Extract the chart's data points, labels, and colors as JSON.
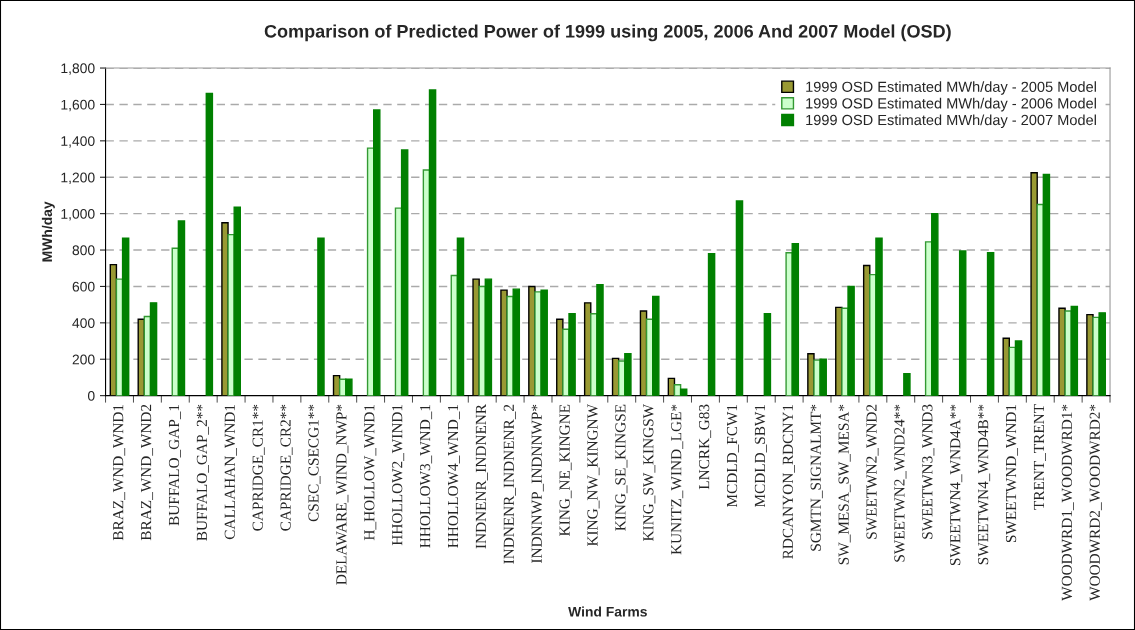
{
  "chart_data": {
    "type": "bar",
    "title": "Comparison of Predicted Power of 1999 using 2005, 2006 And 2007 Model (OSD)",
    "xlabel": "Wind Farms",
    "ylabel": "MWh/day",
    "categories": [
      "BRAZ_WND_WND1",
      "BRAZ_WND_WND2",
      "BUFFALO_GAP_1",
      "BUFFALO_GAP_2**",
      "CALLAHAN_WND1",
      "CAPRIDGE_CR1**",
      "CAPRIDGE_CR2**",
      "CSEC_CSECG1**",
      "DELAWARE_WIND_NWP*",
      "H_HOLLOW_WND1",
      "HHOLLOW2_WIND1",
      "HHOLLOW3_WND_1",
      "HHOLLOW4_WND_1",
      "INDNENR_INDNENR",
      "INDNENR_INDNENR_2",
      "INDNNWP_INDNNWP*",
      "KING_NE_KINGNE",
      "KING_NW_KINGNW",
      "KING_SE_KINGSE",
      "KING_SW_KINGSW",
      "KUNITZ_WIND_LGE*",
      "LNCRK_G83",
      "MCDLD_FCW1",
      "MCDLD_SBW1",
      "RDCANYON_RDCNY1",
      "SGMTN_SIGNALMT*",
      "SW_MESA_SW_MESA*",
      "SWEETWN2_WND2",
      "SWEETWN2_WND24**",
      "SWEETWN3_WND3",
      "SWEETWN4_WND4A**",
      "SWEETWN4_WND4B**",
      "SWEETWND_WND1",
      "TRENT_TRENT",
      "WOODWRD1_WOODWRD1*",
      "WOODWRD2_WOODWRD2*"
    ],
    "series": [
      {
        "name": "1999 OSD Estimated MWh/day - 2005 Model",
        "color": "#999933",
        "values": [
          720,
          420,
          null,
          null,
          950,
          null,
          null,
          null,
          110,
          null,
          null,
          null,
          null,
          640,
          580,
          600,
          420,
          510,
          205,
          465,
          95,
          null,
          null,
          null,
          null,
          230,
          485,
          715,
          null,
          null,
          null,
          null,
          315,
          1225,
          480,
          445
        ]
      },
      {
        "name": "1999 OSD Estimated MWh/day - 2006 Model",
        "color": "#ccffcc",
        "values": [
          640,
          435,
          810,
          null,
          885,
          null,
          null,
          null,
          90,
          1360,
          1030,
          1240,
          660,
          600,
          545,
          570,
          365,
          450,
          190,
          420,
          60,
          null,
          null,
          null,
          785,
          195,
          480,
          665,
          null,
          845,
          null,
          null,
          265,
          1050,
          465,
          430
        ]
      },
      {
        "name": "1999 OSD Estimated MWh/day - 2007 Model",
        "color": "#008000",
        "values": [
          865,
          510,
          960,
          1660,
          1035,
          null,
          null,
          865,
          90,
          1570,
          1350,
          1680,
          865,
          640,
          585,
          580,
          450,
          610,
          230,
          545,
          35,
          780,
          1070,
          450,
          835,
          200,
          600,
          865,
          120,
          1000,
          795,
          785,
          300,
          1215,
          490,
          455
        ]
      }
    ],
    "ylim": [
      0,
      1800
    ],
    "yticks": [
      0,
      {
        "value": 200,
        "label": "200"
      },
      {
        "value": 400,
        "label": "400"
      },
      {
        "value": 600,
        "label": "600"
      },
      {
        "value": 800,
        "label": "800"
      },
      {
        "value": 1000,
        "label": "1,000"
      },
      {
        "value": 1200,
        "label": "1,200"
      },
      {
        "value": 1400,
        "label": "1,400"
      },
      {
        "value": 1600,
        "label": "1,600"
      },
      {
        "value": 1800,
        "label": "1,800"
      }
    ],
    "grid": "y",
    "legend": "top right"
  }
}
